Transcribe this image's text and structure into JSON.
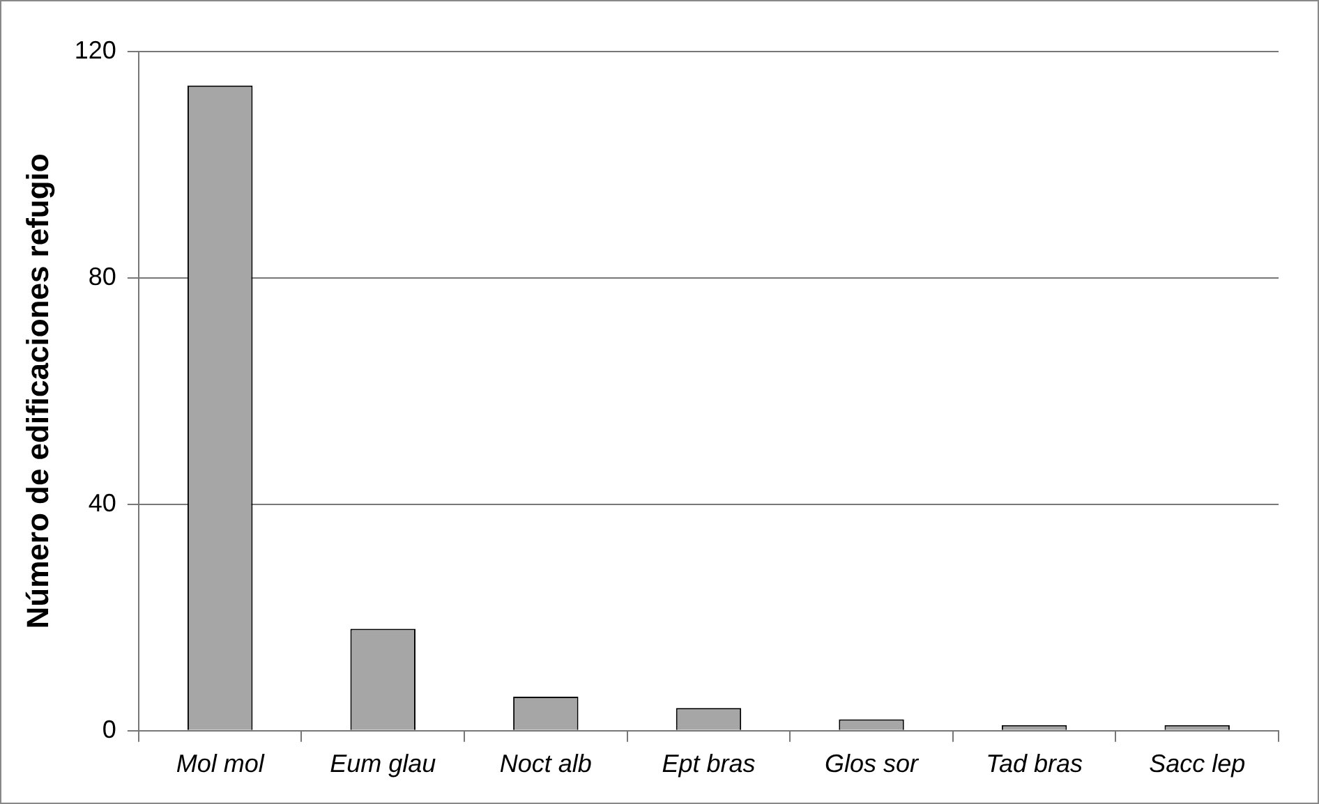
{
  "chart_data": {
    "type": "bar",
    "ylabel": "Número de edificaciones refugio",
    "categories": [
      "Mol mol",
      "Eum glau",
      "Noct alb",
      "Ept bras",
      "Glos sor",
      "Tad bras",
      "Sacc lep"
    ],
    "values": [
      114,
      18,
      6,
      4,
      2,
      1,
      1
    ],
    "color": "#a6a6a6",
    "ylim": [
      0,
      120
    ],
    "yticks": [
      0,
      40,
      80,
      120
    ],
    "grid": "y"
  }
}
